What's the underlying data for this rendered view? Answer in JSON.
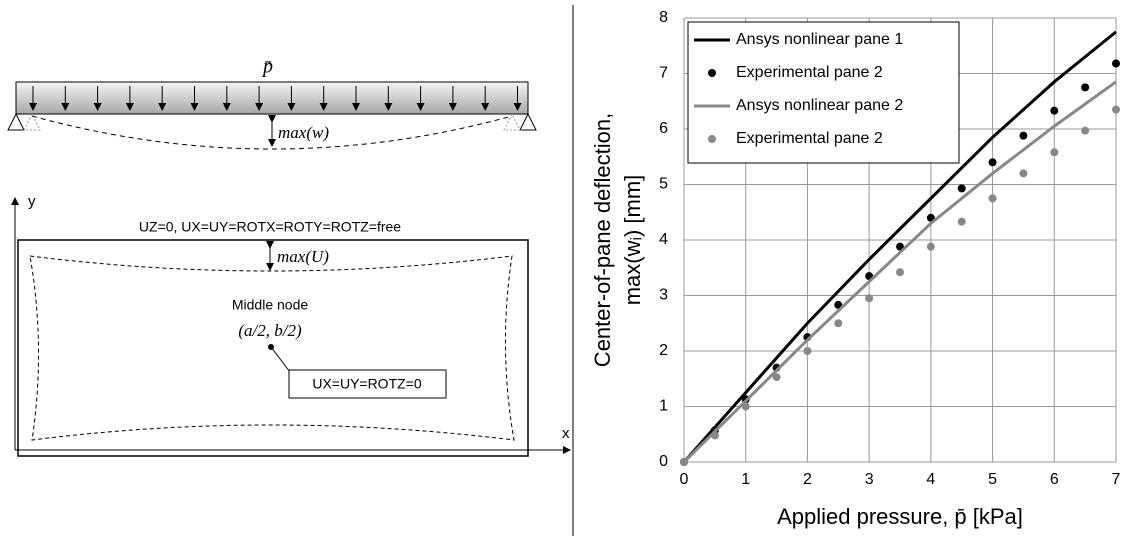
{
  "diagram": {
    "load_label": "p̄",
    "max_w": "max(w)",
    "y_axis": "y",
    "x_axis": "x",
    "boundary": "UZ=0, UX=UY=ROTX=ROTY=ROTZ=free",
    "max_u": "max(U)",
    "middle_node": "Middle node",
    "coords": "(a/2, b/2)",
    "node_bc": "UX=UY=ROTZ=0"
  },
  "chart_data": {
    "type": "line",
    "ylabel": [
      "Center-of-pane deflection,",
      "max(wᵢ) [mm]"
    ],
    "xlabel": "Applied pressure, p̄ [kPa]",
    "xlim": [
      0,
      7
    ],
    "xticks": [
      0,
      1,
      2,
      3,
      4,
      5,
      6,
      7
    ],
    "ylim": [
      0,
      8
    ],
    "yticks": [
      0,
      1,
      2,
      3,
      4,
      5,
      6,
      7,
      8
    ],
    "grid": true,
    "legend": "upper left",
    "series": [
      {
        "name": "Ansys nonlinear pane 1",
        "style": "line",
        "color": "#000000",
        "x": [
          0,
          1,
          2,
          3,
          4,
          5,
          6,
          7
        ],
        "values": [
          0,
          1.25,
          2.5,
          3.65,
          4.75,
          5.85,
          6.85,
          7.75
        ]
      },
      {
        "name": "Experimental pane 2",
        "style": "marker",
        "color": "#000000",
        "x": [
          0,
          0.5,
          1,
          1.5,
          2,
          2.5,
          3,
          3.5,
          4,
          4.5,
          5,
          5.5,
          6,
          6.5,
          7
        ],
        "values": [
          0,
          0.57,
          1.13,
          1.7,
          2.25,
          2.83,
          3.35,
          3.88,
          4.4,
          4.93,
          5.4,
          5.88,
          6.33,
          6.75,
          7.18
        ]
      },
      {
        "name": "Ansys nonlinear pane 2",
        "style": "line",
        "color": "#888888",
        "x": [
          0,
          1,
          2,
          3,
          4,
          5,
          6,
          7
        ],
        "values": [
          0,
          1.1,
          2.2,
          3.25,
          4.3,
          5.2,
          6.05,
          6.85
        ]
      },
      {
        "name": "Experimental pane 2",
        "style": "marker",
        "color": "#888888",
        "x": [
          0,
          0.5,
          1,
          1.5,
          2,
          2.5,
          3,
          3.5,
          4,
          4.5,
          5,
          5.5,
          6,
          6.5,
          7
        ],
        "values": [
          0,
          0.48,
          1.0,
          1.53,
          2.0,
          2.5,
          2.95,
          3.42,
          3.88,
          4.33,
          4.75,
          5.2,
          5.58,
          5.97,
          6.35
        ]
      }
    ]
  }
}
